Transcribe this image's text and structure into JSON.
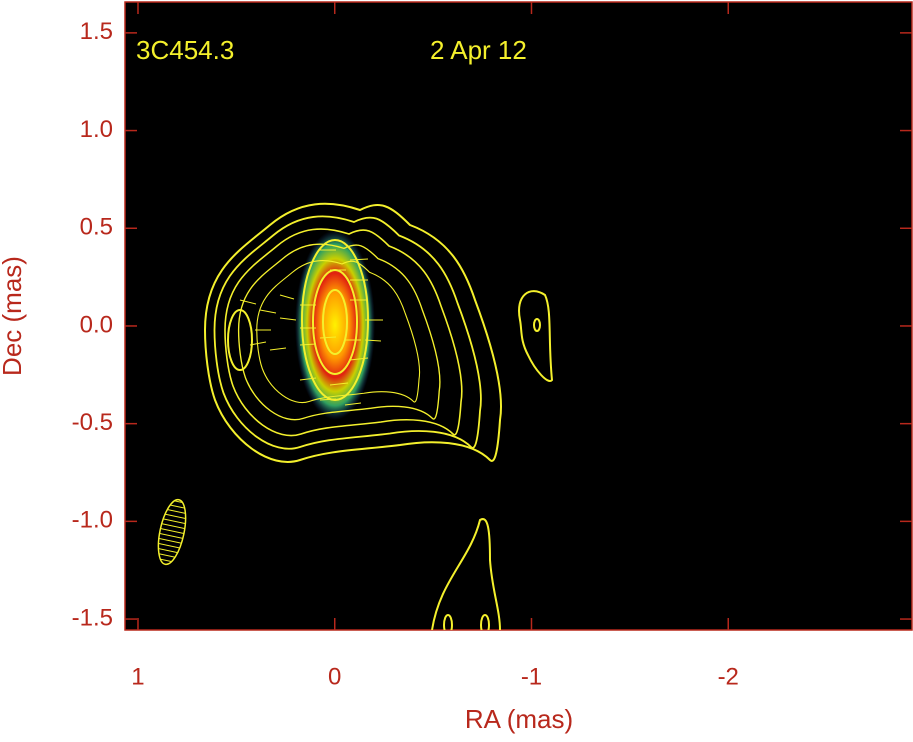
{
  "chart_data": {
    "type": "contour",
    "annotations": [
      "3C454.3",
      "2 Apr 12"
    ],
    "x_label": "RA (mas)",
    "y_label": "Dec (mas)",
    "xlim": [
      1.066,
      -2.934
    ],
    "xticks": [
      1,
      0,
      -1,
      -2
    ],
    "ylim": [
      -1.556,
      1.658
    ],
    "yticks": [
      1.5,
      {
        "value": 1,
        "label": "1.0"
      },
      0.5,
      {
        "value": 0,
        "label": "0.0"
      },
      -0.5,
      {
        "value": -1,
        "label": "-1.0"
      },
      -1.5
    ],
    "grid": false
  }
}
